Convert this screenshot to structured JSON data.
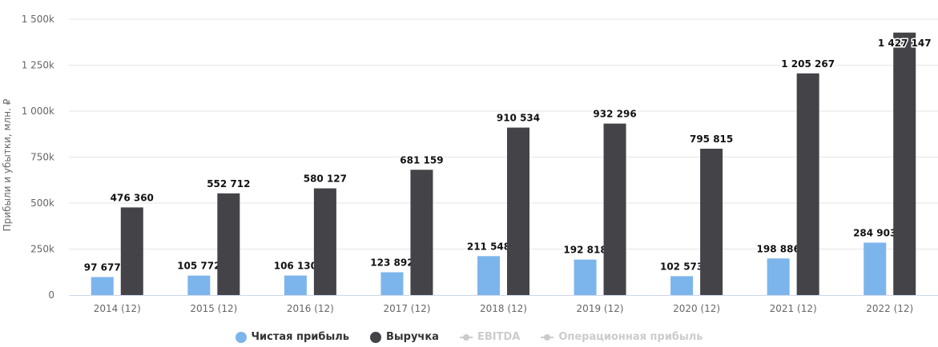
{
  "chart_data": {
    "type": "bar",
    "ylabel": "Прибыли и убытки, млн. ₽",
    "ylim": [
      0,
      1500000
    ],
    "yticks": [
      "0",
      "250k",
      "500k",
      "750k",
      "1 000k",
      "1 250k",
      "1 500k"
    ],
    "ytick_values": [
      0,
      250000,
      500000,
      750000,
      1000000,
      1250000,
      1500000
    ],
    "categories": [
      "2014 (12)",
      "2015 (12)",
      "2016 (12)",
      "2017 (12)",
      "2018 (12)",
      "2019 (12)",
      "2020 (12)",
      "2021 (12)",
      "2022 (12)"
    ],
    "series": [
      {
        "name": "Чистая прибыль",
        "color": "#7cb5ec",
        "values": [
          97677,
          105772,
          106130,
          123892,
          211548,
          192818,
          102573,
          198886,
          284903
        ],
        "labels": [
          "97 677",
          "105 772",
          "106 130",
          "123 892",
          "211 548",
          "192 818",
          "102 573",
          "198 886",
          "284 903"
        ]
      },
      {
        "name": "Выручка",
        "color": "#434348",
        "values": [
          476360,
          552712,
          580127,
          681159,
          910534,
          932296,
          795815,
          1205267,
          1427147
        ],
        "labels": [
          "476 360",
          "552 712",
          "580 127",
          "681 159",
          "910 534",
          "932 296",
          "795 815",
          "1 205 267",
          "1 427 147"
        ]
      }
    ],
    "grid": true,
    "legend_position": "bottom-center"
  },
  "legend": [
    {
      "label": "Чистая прибыль",
      "color": "#7cb5ec",
      "active": true
    },
    {
      "label": "Выручка",
      "color": "#434348",
      "active": true
    },
    {
      "label": "EBITDA",
      "active": false
    },
    {
      "label": "Операционная прибыль",
      "active": false
    }
  ]
}
